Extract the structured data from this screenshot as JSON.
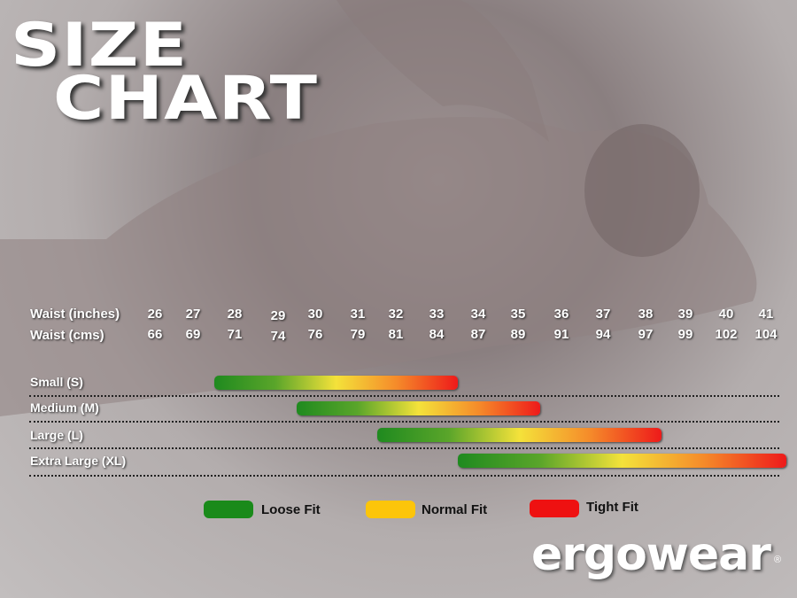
{
  "title_line1": "SIZE",
  "title_line2": "CHART",
  "chart_data": {
    "type": "range-bar",
    "row_labels": {
      "inches": "Waist (inches)",
      "cms": "Waist (cms)"
    },
    "waist_inches": [
      26,
      27,
      28,
      29,
      30,
      31,
      32,
      33,
      34,
      35,
      36,
      37,
      38,
      39,
      40,
      41
    ],
    "waist_cms": [
      66,
      69,
      71,
      74,
      76,
      79,
      81,
      84,
      87,
      89,
      91,
      94,
      97,
      99,
      102,
      104
    ],
    "sizes": [
      {
        "label": "Small (S)",
        "from_inches": 27.5,
        "to_inches": 33.5
      },
      {
        "label": "Medium (M)",
        "from_inches": 29.5,
        "to_inches": 35.5
      },
      {
        "label": "Large (L)",
        "from_inches": 31.5,
        "to_inches": 38.4
      },
      {
        "label": "Extra Large (XL)",
        "from_inches": 33.5,
        "to_inches": 41.5
      }
    ],
    "legend": [
      {
        "label": "Loose Fit",
        "color": "#1a8a1a"
      },
      {
        "label": "Normal Fit",
        "color": "#fcc50a"
      },
      {
        "label": "Tight Fit",
        "color": "#ee1111"
      }
    ]
  },
  "brand": {
    "logo": "ergowear",
    "registered": "®"
  }
}
